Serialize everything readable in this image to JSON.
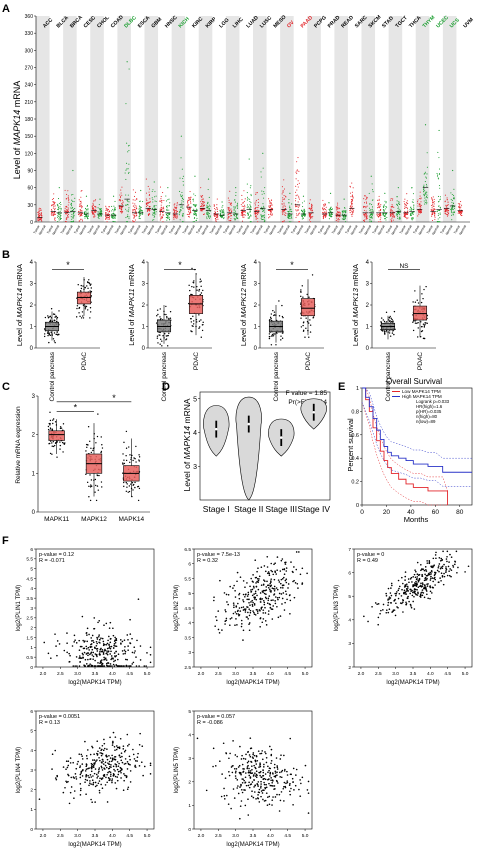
{
  "chart_data": [
    {
      "id": "A",
      "panel_label": "A",
      "type": "scatter",
      "ylabel_prefix": "Level of ",
      "ylabel_gene": "MAPK14",
      "ylabel_suffix": " mRNA",
      "ylim": [
        0,
        360
      ],
      "yticks": [
        0,
        30,
        60,
        90,
        120,
        150,
        180,
        210,
        240,
        270,
        300,
        330,
        360
      ],
      "cancers": [
        {
          "label": "ACC",
          "color": "#000000"
        },
        {
          "label": "BLCA",
          "color": "#000000"
        },
        {
          "label": "BRCA",
          "color": "#000000"
        },
        {
          "label": "CESC",
          "color": "#000000"
        },
        {
          "label": "CHOL",
          "color": "#000000"
        },
        {
          "label": "COAD",
          "color": "#000000"
        },
        {
          "label": "DLBC",
          "color": "#1a9e2f"
        },
        {
          "label": "ESCA",
          "color": "#000000"
        },
        {
          "label": "GBM",
          "color": "#000000"
        },
        {
          "label": "HNSC",
          "color": "#000000"
        },
        {
          "label": "KICH",
          "color": "#1a9e2f"
        },
        {
          "label": "KIRC",
          "color": "#000000"
        },
        {
          "label": "KIRP",
          "color": "#000000"
        },
        {
          "label": "LGG",
          "color": "#000000"
        },
        {
          "label": "LIHC",
          "color": "#000000"
        },
        {
          "label": "LUAD",
          "color": "#000000"
        },
        {
          "label": "LUSC",
          "color": "#000000"
        },
        {
          "label": "MESO",
          "color": "#000000"
        },
        {
          "label": "OV",
          "color": "#e3262b"
        },
        {
          "label": "PAAD",
          "color": "#e3262b"
        },
        {
          "label": "PCPG",
          "color": "#000000"
        },
        {
          "label": "PRAD",
          "color": "#000000"
        },
        {
          "label": "READ",
          "color": "#000000"
        },
        {
          "label": "SARC",
          "color": "#000000"
        },
        {
          "label": "SKCM",
          "color": "#000000"
        },
        {
          "label": "STAD",
          "color": "#000000"
        },
        {
          "label": "TGCT",
          "color": "#000000"
        },
        {
          "label": "THCA",
          "color": "#000000"
        },
        {
          "label": "THYM",
          "color": "#1a9e2f"
        },
        {
          "label": "UCEC",
          "color": "#1a9e2f"
        },
        {
          "label": "UCS",
          "color": "#1a9e2f"
        },
        {
          "label": "UVM",
          "color": "#000000"
        }
      ],
      "tumor_color": "#e3262b",
      "normal_color": "#1a9e2f",
      "tumor_medians": [
        8,
        18,
        17,
        16,
        20,
        12,
        28,
        16,
        24,
        18,
        14,
        26,
        24,
        14,
        16,
        20,
        18,
        22,
        22,
        30,
        16,
        14,
        12,
        24,
        16,
        16,
        16,
        16,
        22,
        18,
        24,
        20
      ],
      "normal_medians": [
        0,
        16,
        18,
        14,
        14,
        12,
        40,
        16,
        22,
        16,
        30,
        20,
        20,
        12,
        14,
        22,
        24,
        0,
        14,
        14,
        0,
        16,
        12,
        0,
        16,
        16,
        18,
        18,
        60,
        22,
        28,
        0
      ],
      "normal_max": [
        0,
        60,
        90,
        45,
        40,
        45,
        280,
        55,
        70,
        60,
        150,
        80,
        75,
        35,
        60,
        110,
        120,
        0,
        50,
        45,
        0,
        50,
        40,
        0,
        80,
        50,
        60,
        60,
        170,
        160,
        90,
        0
      ],
      "tumor_max": [
        30,
        60,
        80,
        55,
        50,
        40,
        70,
        65,
        75,
        70,
        40,
        70,
        60,
        40,
        55,
        60,
        60,
        50,
        90,
        120,
        45,
        40,
        40,
        70,
        70,
        55,
        55,
        50,
        60,
        55,
        60,
        45
      ],
      "x_tick_labels": [
        "Tumor",
        "Normal"
      ]
    },
    {
      "id": "B",
      "panel_label": "B",
      "type": "box",
      "plots": [
        {
          "ylabel_prefix": "Level of ",
          "gene": "MAPK14",
          "ylabel_suffix": " mRNA",
          "ylim": [
            0,
            4
          ],
          "yticks": [
            0,
            1,
            2,
            3,
            4
          ],
          "categories": [
            "Control pancreas",
            "PDAC"
          ],
          "medians": [
            1.0,
            2.35
          ],
          "q1": [
            0.8,
            2.05
          ],
          "q3": [
            1.2,
            2.6
          ],
          "whisker_low": [
            0.35,
            1.5
          ],
          "whisker_high": [
            1.7,
            3.3
          ],
          "significance": "*"
        },
        {
          "ylabel_prefix": "Level of ",
          "gene": "MAPK11",
          "ylabel_suffix": " mRNA",
          "ylim": [
            0,
            4
          ],
          "yticks": [
            0,
            1,
            2,
            3,
            4
          ],
          "categories": [
            "Control pancreas",
            "PDAC"
          ],
          "medians": [
            1.0,
            2.05
          ],
          "q1": [
            0.75,
            1.6
          ],
          "q3": [
            1.3,
            2.45
          ],
          "whisker_low": [
            0.2,
            0.6
          ],
          "whisker_high": [
            2.0,
            3.4
          ],
          "significance": "*"
        },
        {
          "ylabel_prefix": "Level of ",
          "gene": "MAPK12",
          "ylabel_suffix": " mRNA",
          "ylim": [
            0,
            4
          ],
          "yticks": [
            0,
            1,
            2,
            3,
            4
          ],
          "categories": [
            "Control pancreas",
            "PDAC"
          ],
          "medians": [
            1.0,
            1.85
          ],
          "q1": [
            0.75,
            1.5
          ],
          "q3": [
            1.25,
            2.3
          ],
          "whisker_low": [
            0.25,
            0.6
          ],
          "whisker_high": [
            2.0,
            3.2
          ],
          "significance": "*"
        },
        {
          "ylabel_prefix": "Level of ",
          "gene": "MAPK13",
          "ylabel_suffix": " mRNA",
          "ylim": [
            0,
            4
          ],
          "yticks": [
            0,
            1,
            2,
            3,
            4
          ],
          "categories": [
            "Control pancreas",
            "PDAC"
          ],
          "medians": [
            1.0,
            1.6
          ],
          "q1": [
            0.85,
            1.3
          ],
          "q3": [
            1.15,
            1.95
          ],
          "whisker_low": [
            0.4,
            0.5
          ],
          "whisker_high": [
            1.5,
            2.9
          ],
          "significance": "NS"
        }
      ],
      "box_colors": [
        "#7f7f7f",
        "#e8625e"
      ]
    },
    {
      "id": "C",
      "panel_label": "C",
      "type": "box",
      "ylabel": "Relative mRNA expression",
      "ylim": [
        0,
        3
      ],
      "yticks": [
        0,
        1,
        2,
        3
      ],
      "categories": [
        "MAPK11",
        "MAPK12",
        "MAPK14"
      ],
      "medians": [
        2.0,
        1.25,
        1.0
      ],
      "q1": [
        1.85,
        1.0,
        0.8
      ],
      "q3": [
        2.1,
        1.5,
        1.2
      ],
      "whisker_low": [
        1.5,
        0.4,
        0.4
      ],
      "whisker_high": [
        2.4,
        2.3,
        1.9
      ],
      "significance": [
        "*",
        "*"
      ],
      "box_colors": [
        "#e8625e",
        "#e8625e",
        "#e8625e"
      ]
    },
    {
      "id": "D",
      "panel_label": "D",
      "type": "violin",
      "ylabel_prefix": "Level of ",
      "ylabel_gene": "MAPK14",
      "ylabel_suffix": " mRNA",
      "ylim": [
        2,
        5.2
      ],
      "yticks": [
        3,
        4,
        5
      ],
      "categories": [
        "Stage I",
        "Stage II",
        "Stage III",
        "Stage IV"
      ],
      "medians": [
        4.1,
        4.25,
        3.85,
        4.6
      ],
      "min": [
        3.3,
        2.0,
        3.3,
        4.1
      ],
      "max": [
        4.8,
        5.05,
        4.4,
        5.0
      ],
      "fill": "#d9d9d9",
      "stats_line1": "F value = 1.85",
      "stats_line2": "Pr(>F) = 0.14"
    },
    {
      "id": "E",
      "panel_label": "E",
      "type": "line",
      "title": "Overall Survival",
      "xlabel": "Months",
      "ylabel": "Percent survival",
      "xlim": [
        0,
        90
      ],
      "ylim": [
        0,
        1
      ],
      "xticks": [
        0,
        20,
        40,
        60,
        80
      ],
      "yticks": [
        0,
        0.2,
        0.4,
        0.6,
        0.8,
        1.0
      ],
      "series": [
        {
          "name": "Low MAPK14 TPM",
          "color": "#e3262b",
          "x": [
            0,
            3,
            6,
            9,
            12,
            15,
            18,
            21,
            24,
            30,
            36,
            42,
            48,
            54,
            60,
            66,
            70
          ],
          "y": [
            1.0,
            0.9,
            0.8,
            0.66,
            0.55,
            0.46,
            0.38,
            0.32,
            0.27,
            0.22,
            0.18,
            0.15,
            0.15,
            0.12,
            0.12,
            0.12,
            0.0
          ]
        },
        {
          "name": "High MAPK14 TPM",
          "color": "#2a34c8",
          "x": [
            0,
            3,
            6,
            9,
            12,
            15,
            18,
            21,
            24,
            30,
            36,
            42,
            48,
            54,
            60,
            66,
            72,
            80,
            90
          ],
          "y": [
            1.0,
            0.92,
            0.84,
            0.74,
            0.64,
            0.56,
            0.5,
            0.45,
            0.42,
            0.4,
            0.38,
            0.35,
            0.35,
            0.33,
            0.33,
            0.28,
            0.28,
            0.28,
            0.28
          ]
        }
      ],
      "legend_extra": [
        "Logrank p=0.033",
        "HR(high)=1.6",
        "p(HR)=0.035",
        "n(high)=80",
        "n(low)=89"
      ]
    },
    {
      "id": "F",
      "panel_label": "F",
      "type": "scatter",
      "plots": [
        {
          "pvalue": "p-value = 0.12",
          "r": "R = -0.071",
          "ylabel": "log2(PLIN1 TPM)",
          "xlabel": "log2(MAPK14 TPM)",
          "ylim": [
            0,
            6
          ],
          "yticks": [
            0,
            0.5,
            1,
            1.5,
            2,
            2.5,
            3,
            3.5,
            4,
            4.5,
            5,
            5.5,
            6
          ],
          "xlim": [
            1.8,
            5.2
          ],
          "xticks": [
            2.0,
            2.5,
            3.0,
            3.5,
            4.0,
            4.5,
            5.0
          ],
          "slope": -0.2,
          "intercept": 1.4,
          "spread": 1.0
        },
        {
          "pvalue": "p-value = 7.5e-13",
          "r": "R = 0.32",
          "ylabel": "log2(PLIN2 TPM)",
          "xlabel": "log2(MAPK14 TPM)",
          "ylim": [
            2.5,
            6.5
          ],
          "yticks": [
            2.5,
            3,
            3.5,
            4,
            4.5,
            5,
            5.5,
            6,
            6.5
          ],
          "xlim": [
            1.8,
            5.2
          ],
          "xticks": [
            2.0,
            2.5,
            3.0,
            3.5,
            4.0,
            4.5,
            5.0
          ],
          "slope": 0.55,
          "intercept": 2.9,
          "spread": 0.7
        },
        {
          "pvalue": "p-value = 0",
          "r": "R = 0.49",
          "ylabel": "log2(PLIN3 TPM)",
          "xlabel": "log2(MAPK14 TPM)",
          "ylim": [
            2,
            7
          ],
          "yticks": [
            2,
            3,
            4,
            5,
            6,
            7
          ],
          "xlim": [
            1.8,
            5.2
          ],
          "xticks": [
            2.0,
            2.5,
            3.0,
            3.5,
            4.0,
            4.5,
            5.0
          ],
          "slope": 0.9,
          "intercept": 2.2,
          "spread": 0.55
        },
        {
          "pvalue": "p-value = 0.0051",
          "r": "R = 0.13",
          "ylabel": "log2(PLIN4 TPM)",
          "xlabel": "log2(MAPK14 TPM)",
          "ylim": [
            0,
            6
          ],
          "yticks": [
            0,
            1,
            2,
            3,
            4,
            5,
            6
          ],
          "xlim": [
            1.8,
            5.2
          ],
          "xticks": [
            2.0,
            2.5,
            3.0,
            3.5,
            4.0,
            4.5,
            5.0
          ],
          "slope": 0.3,
          "intercept": 2.0,
          "spread": 1.0
        },
        {
          "pvalue": "p-value = 0.057",
          "r": "R = -0.086",
          "ylabel": "log2(PLIN5 TPM)",
          "xlabel": "log2(MAPK14 TPM)",
          "ylim": [
            0,
            5
          ],
          "yticks": [
            0,
            1,
            2,
            3,
            4,
            5
          ],
          "xlim": [
            1.8,
            5.2
          ],
          "xticks": [
            2.0,
            2.5,
            3.0,
            3.5,
            4.0,
            4.5,
            5.0
          ],
          "slope": -0.15,
          "intercept": 2.8,
          "spread": 0.9
        }
      ]
    }
  ]
}
